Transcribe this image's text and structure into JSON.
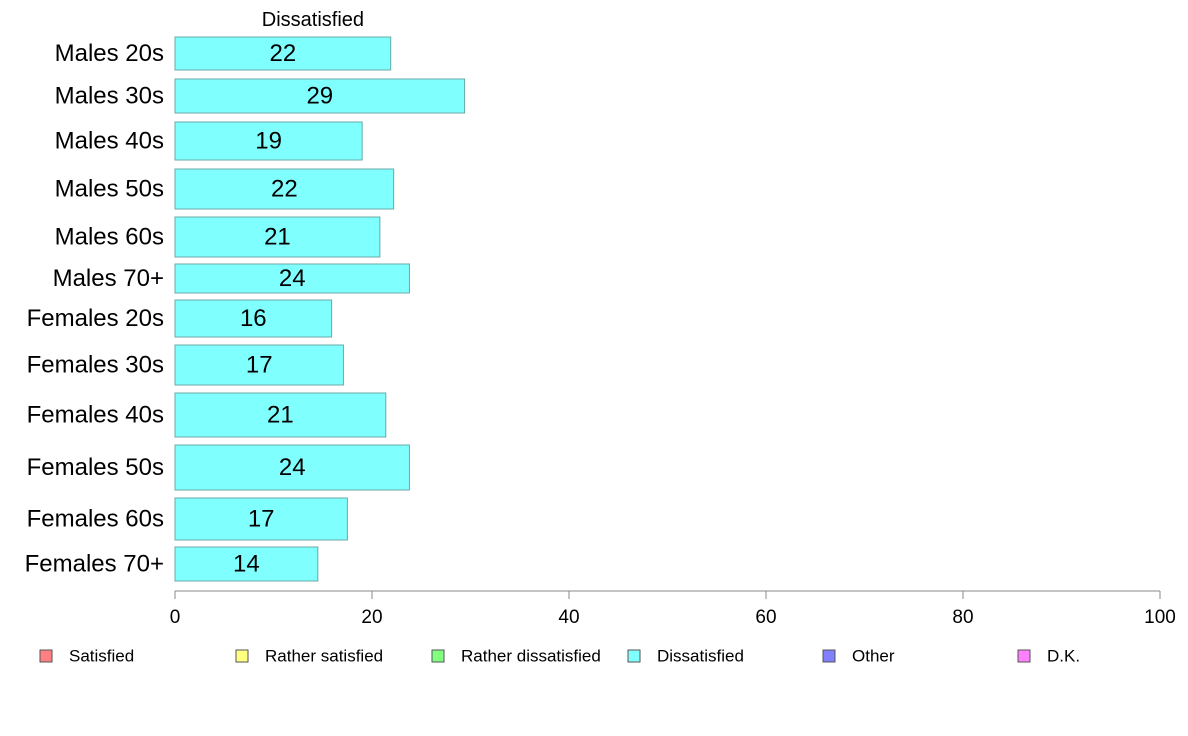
{
  "chart_data": {
    "type": "bar",
    "orientation": "horizontal",
    "header": "Dissatisfied",
    "categories": [
      "Males 20s",
      "Males 30s",
      "Males 40s",
      "Males 50s",
      "Males 60s",
      "Males 70+",
      "Females 20s",
      "Females 30s",
      "Females 40s",
      "Females 50s",
      "Females 60s",
      "Females 70+"
    ],
    "series": [
      {
        "name": "Dissatisfied",
        "color": "#80FFFF",
        "values": [
          21.9,
          29.4,
          19.0,
          22.2,
          20.8,
          23.8,
          15.9,
          17.1,
          21.4,
          23.8,
          17.5,
          14.5
        ],
        "labels": [
          "22",
          "29",
          "19",
          "22",
          "21",
          "24",
          "16",
          "17",
          "21",
          "24",
          "17",
          "14"
        ]
      }
    ],
    "xlim": [
      0,
      100
    ],
    "xticks": [
      0,
      20,
      40,
      60,
      80,
      100
    ],
    "xtick_labels": [
      "0",
      "20",
      "40",
      "60",
      "80",
      "100"
    ],
    "grid": false,
    "legend": {
      "placement": "bottom",
      "entries": [
        {
          "label": "Satisfied",
          "color": "#FF8080"
        },
        {
          "label": "Rather satisfied",
          "color": "#FFFF80"
        },
        {
          "label": "Rather dissatisfied",
          "color": "#80FF80"
        },
        {
          "label": "Dissatisfied",
          "color": "#80FFFF"
        },
        {
          "label": "Other",
          "color": "#8080FF"
        },
        {
          "label": "D.K.",
          "color": "#FF80FF"
        }
      ]
    }
  }
}
